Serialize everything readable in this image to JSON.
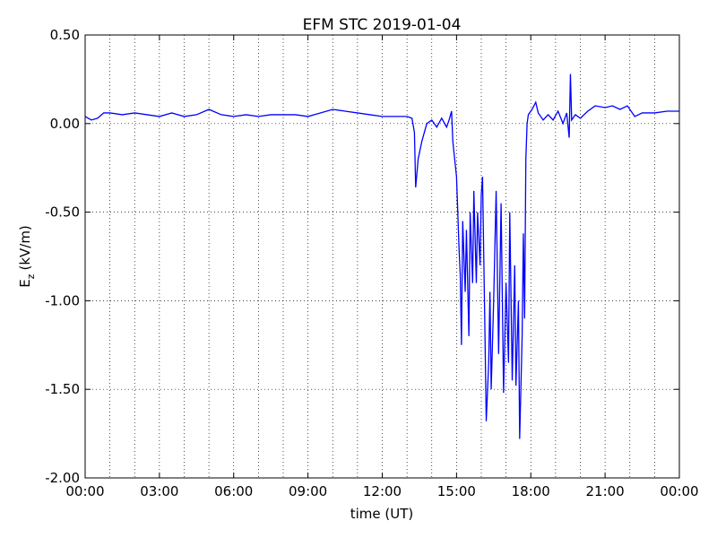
{
  "chart_data": {
    "type": "line",
    "title": "EFM STC    2019-01-04",
    "xlabel": "time (UT)",
    "ylabel": {
      "base": "E",
      "sub": "z",
      "unit": "(kV/m)"
    },
    "color": "#0000ff",
    "x": [
      0,
      0.25,
      0.5,
      0.75,
      1,
      1.5,
      2,
      2.5,
      3,
      3.5,
      4,
      4.5,
      5,
      5.5,
      6,
      6.5,
      7,
      7.5,
      8,
      8.5,
      9,
      9.5,
      10,
      10.5,
      11,
      11.5,
      12,
      12.5,
      13,
      13.2,
      13.3,
      13.35,
      13.45,
      13.6,
      13.8,
      14,
      14.2,
      14.4,
      14.6,
      14.7,
      14.8,
      14.85,
      15,
      15.1,
      15.15,
      15.2,
      15.25,
      15.35,
      15.4,
      15.5,
      15.55,
      15.65,
      15.7,
      15.8,
      15.85,
      15.95,
      16,
      16.05,
      16.15,
      16.2,
      16.3,
      16.35,
      16.4,
      16.5,
      16.6,
      16.7,
      16.8,
      16.9,
      17,
      17.1,
      17.15,
      17.25,
      17.35,
      17.4,
      17.5,
      17.55,
      17.65,
      17.7,
      17.75,
      17.8,
      17.85,
      17.9,
      18.05,
      18.2,
      18.3,
      18.5,
      18.7,
      18.9,
      19.1,
      19.3,
      19.45,
      19.55,
      19.6,
      19.65,
      19.8,
      20,
      20.3,
      20.6,
      21,
      21.3,
      21.6,
      21.9,
      22.2,
      22.5,
      23,
      23.5,
      24
    ],
    "values": [
      0.04,
      0.02,
      0.03,
      0.06,
      0.06,
      0.05,
      0.06,
      0.05,
      0.04,
      0.06,
      0.04,
      0.05,
      0.08,
      0.05,
      0.04,
      0.05,
      0.04,
      0.05,
      0.05,
      0.05,
      0.04,
      0.06,
      0.08,
      0.07,
      0.06,
      0.05,
      0.04,
      0.04,
      0.04,
      0.03,
      -0.05,
      -0.36,
      -0.2,
      -0.1,
      0.0,
      0.02,
      -0.02,
      0.03,
      -0.02,
      0.02,
      0.07,
      -0.1,
      -0.3,
      -0.7,
      -0.85,
      -1.25,
      -0.55,
      -0.95,
      -0.6,
      -1.2,
      -0.5,
      -0.9,
      -0.38,
      -0.9,
      -0.5,
      -0.8,
      -0.4,
      -0.3,
      -1.2,
      -1.68,
      -1.35,
      -0.95,
      -1.5,
      -1.0,
      -0.38,
      -1.3,
      -0.45,
      -1.52,
      -0.9,
      -1.35,
      -0.5,
      -1.45,
      -0.8,
      -1.48,
      -1.0,
      -1.78,
      -1.2,
      -0.62,
      -1.1,
      -0.2,
      0.0,
      0.05,
      0.08,
      0.12,
      0.06,
      0.02,
      0.05,
      0.02,
      0.07,
      0.0,
      0.06,
      -0.08,
      0.28,
      0.02,
      0.05,
      0.03,
      0.07,
      0.1,
      0.09,
      0.1,
      0.08,
      0.1,
      0.04,
      0.06,
      0.06,
      0.07,
      0.07
    ],
    "xlim": [
      0,
      24
    ],
    "xticks": [
      {
        "value": 0,
        "label": "00:00"
      },
      {
        "value": 3,
        "label": "03:00"
      },
      {
        "value": 6,
        "label": "06:00"
      },
      {
        "value": 9,
        "label": "09:00"
      },
      {
        "value": 12,
        "label": "12:00"
      },
      {
        "value": 15,
        "label": "15:00"
      },
      {
        "value": 18,
        "label": "18:00"
      },
      {
        "value": 21,
        "label": "21:00"
      },
      {
        "value": 24,
        "label": "00:00"
      }
    ],
    "xminorticks": [
      1,
      2,
      4,
      5,
      7,
      8,
      10,
      11,
      13,
      14,
      16,
      17,
      19,
      20,
      22,
      23
    ],
    "ylim": [
      -2.0,
      0.5
    ],
    "yticks": [
      {
        "value": -2.0,
        "label": "-2.00"
      },
      {
        "value": -1.5,
        "label": "-1.50"
      },
      {
        "value": -1.0,
        "label": "-1.00"
      },
      {
        "value": -0.5,
        "label": "-0.50"
      },
      {
        "value": 0,
        "label": "0.00"
      },
      {
        "value": 0.5,
        "label": "0.50"
      }
    ],
    "grid": true
  }
}
